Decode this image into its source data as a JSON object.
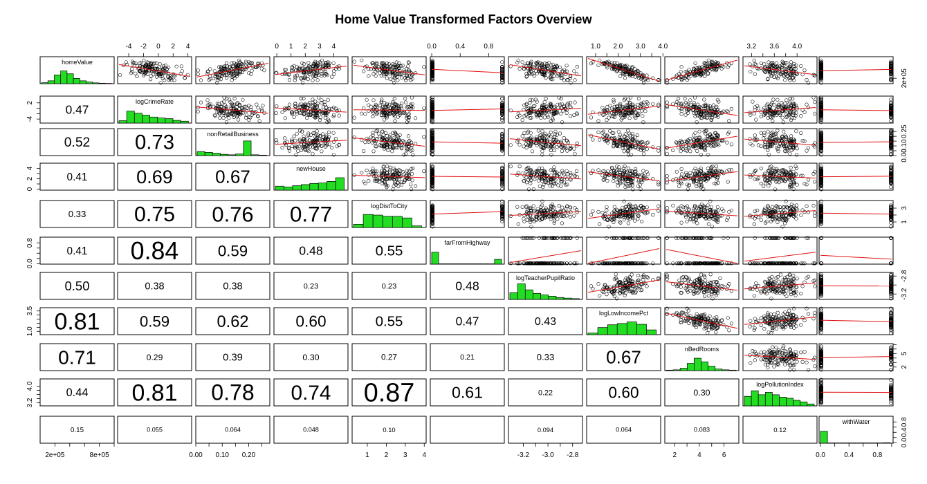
{
  "chart_data": {
    "type": "pairs",
    "title": "Home Value Transformed Factors Overview",
    "variables": [
      "homeValue",
      "logCrimeRate",
      "nonRetailBusiness",
      "newHouse",
      "logDistToCity",
      "farFromHighway",
      "logTeacherPupilRatio",
      "logLowIncomePct",
      "nBedRooms",
      "logPollutionIndex",
      "withWater"
    ],
    "ranges": [
      [
        0,
        1000000
      ],
      [
        -5.5,
        4.5
      ],
      [
        0,
        0.28
      ],
      [
        -0.2,
        5
      ],
      [
        0.2,
        4.1
      ],
      [
        -0.02,
        1.02
      ],
      [
        -3.32,
        -2.72
      ],
      [
        0.6,
        3.9
      ],
      [
        1.2,
        7.2
      ],
      [
        3.05,
        4.35
      ],
      [
        -0.02,
        1.02
      ]
    ],
    "axis_ticks": {
      "top": {
        "1": [
          -4,
          -2,
          0,
          2,
          4
        ],
        "3": [
          0,
          1,
          2,
          3,
          4
        ],
        "5": [
          0.0,
          0.4,
          0.8
        ],
        "7": [
          1.0,
          1.5,
          2.0,
          2.5,
          3.0,
          3.5,
          4.0
        ],
        "9": [
          3.2,
          3.4,
          3.6,
          3.8,
          4.0
        ]
      },
      "bottom": {
        "0": [
          200000,
          400000,
          600000,
          800000,
          1000000
        ],
        "2": [
          0.0,
          0.05,
          0.1,
          0.15,
          0.2,
          0.25
        ],
        "4": [
          1,
          2,
          3,
          4
        ],
        "6": [
          -3.2,
          -3.1,
          -3.0,
          -2.9,
          -2.8
        ],
        "8": [
          2,
          3,
          4,
          5,
          6
        ],
        "10": [
          0.0,
          0.2,
          0.4,
          0.6,
          0.8,
          1.0
        ]
      },
      "right": {
        "0": [
          200000
        ],
        "2": [
          0.0,
          0.05,
          0.1,
          0.15,
          0.2,
          0.25
        ],
        "4": [
          1,
          2,
          3
        ],
        "6": [
          -3.2,
          -3.0,
          -2.8
        ],
        "8": [
          2,
          3,
          4,
          5,
          6,
          7
        ],
        "10": [
          0.0,
          0.2,
          0.4,
          0.6,
          0.8
        ]
      },
      "left": {
        "1": [
          -4,
          -2,
          0,
          2
        ],
        "3": [
          0,
          1,
          2,
          3,
          4
        ],
        "5": [
          0.0,
          0.2,
          0.4,
          0.6,
          0.8
        ],
        "7": [
          1.0,
          1.5,
          2.0,
          2.5,
          3.0,
          3.5
        ],
        "9": [
          3.2,
          3.4,
          3.6,
          3.8,
          4.0
        ]
      }
    },
    "tick_labels": {
      "top": {
        "1": [
          "-4",
          "-2",
          "0",
          "2",
          "4"
        ],
        "3": [
          "0",
          "1",
          "2",
          "3",
          "4"
        ],
        "5": [
          "0.0",
          "0.4",
          "0.8"
        ],
        "7": [
          "1.0",
          "2.0",
          "3.0",
          "4.0"
        ],
        "9": [
          "3.2",
          "3.6",
          "4.0"
        ]
      },
      "bottom": {
        "0": [
          "2e+05",
          "8e+05"
        ],
        "2": [
          "0.00",
          "0.10",
          "0.20"
        ],
        "4": [
          "1",
          "2",
          "3",
          "4"
        ],
        "6": [
          "-3.2",
          "-3.0",
          "-2.8"
        ],
        "8": [
          "2",
          "4",
          "6"
        ],
        "10": [
          "0.0",
          "0.4",
          "0.8"
        ]
      },
      "right": {
        "0": [
          "2e+05"
        ],
        "2": [
          "0.00",
          "0.10",
          "0.25"
        ],
        "4": [
          "1",
          "3"
        ],
        "6": [
          "-3.2",
          "-2.8"
        ],
        "8": [
          "2",
          "5"
        ],
        "10": [
          "0.0",
          "0.4",
          "0.8"
        ]
      },
      "left": {
        "1": [
          "-4",
          "2"
        ],
        "3": [
          "0",
          "2",
          "4"
        ],
        "5": [
          "0.0",
          "0.8"
        ],
        "7": [
          "1.0",
          "3.5"
        ],
        "9": [
          "3.2",
          "4.0"
        ]
      }
    },
    "histograms": [
      [
        0.06,
        0.18,
        0.55,
        0.8,
        0.62,
        0.33,
        0.18,
        0.1,
        0.05,
        0.03,
        0.02
      ],
      [
        0.15,
        0.75,
        0.62,
        0.5,
        0.38,
        0.32,
        0.28,
        0.17,
        0.12
      ],
      [
        0.25,
        0.2,
        0.15,
        0.08,
        0.05,
        0.1,
        0.92,
        0.05,
        0.03
      ],
      [
        0.25,
        0.2,
        0.28,
        0.35,
        0.42,
        0.45,
        0.55,
        0.78
      ],
      [
        0.2,
        0.82,
        0.78,
        0.7,
        0.7,
        0.6,
        0.1
      ],
      [
        0.75,
        0.02,
        0.02,
        0.02,
        0.02,
        0.02,
        0.02,
        0.02,
        0.02,
        0.3
      ],
      [
        0.42,
        0.98,
        0.6,
        0.38,
        0.28,
        0.2,
        0.12,
        0.08,
        0.05
      ],
      [
        0.1,
        0.45,
        0.62,
        0.7,
        0.8,
        0.65,
        0.3
      ],
      [
        0.03,
        0.05,
        0.15,
        0.45,
        0.78,
        0.55,
        0.28,
        0.1,
        0.05,
        0.03
      ],
      [
        0.6,
        0.95,
        0.7,
        0.85,
        0.7,
        0.55,
        0.48,
        0.35,
        0.25,
        0.12
      ],
      [
        0.75,
        0.02,
        0.02,
        0.02,
        0.02,
        0.02,
        0.02,
        0.02,
        0.02,
        0.03
      ]
    ],
    "correlations": [
      [
        "0.47",
        "0.52",
        "0.41",
        "0.33",
        "0.41",
        "0.50",
        "0.81",
        "0.71",
        "0.44",
        "0.15"
      ],
      [
        "0.73",
        "0.69",
        "0.75",
        "0.84",
        "0.38",
        "0.59",
        "0.29",
        "0.81",
        "0.055"
      ],
      [
        "0.67",
        "0.76",
        "0.59",
        "0.38",
        "0.62",
        "0.39",
        "0.78",
        "0.064"
      ],
      [
        "0.77",
        "0.48",
        "0.23",
        "0.60",
        "0.30",
        "0.74",
        "0.048"
      ],
      [
        "0.55",
        "0.23",
        "0.55",
        "0.27",
        "0.87",
        "0.10"
      ],
      [
        "0.48",
        "0.47",
        "0.21",
        "0.61",
        ""
      ],
      [
        "0.43",
        "0.33",
        "0.22",
        "0.094"
      ],
      [
        "0.67",
        "0.60",
        "0.064"
      ],
      [
        "0.30",
        "0.083"
      ],
      [
        "0.12"
      ]
    ],
    "correlation_signs": [
      [
        -1,
        1,
        1,
        -1,
        -1,
        -1,
        -1,
        1,
        -1,
        1
      ],
      [
        1,
        -1,
        -1,
        1,
        1,
        1,
        -1,
        1,
        1
      ],
      [
        -1,
        -1,
        1,
        1,
        1,
        -1,
        1,
        1
      ],
      [
        1,
        -1,
        1,
        1,
        -1,
        1,
        -1
      ],
      [
        -1,
        -1,
        -1,
        1,
        -1,
        -1
      ],
      [
        1,
        -1,
        -1,
        1,
        1
      ],
      [
        1,
        -1,
        1,
        -1
      ],
      [
        -1,
        1,
        -1
      ],
      [
        -1,
        1
      ],
      [
        1
      ]
    ],
    "colors": {
      "hist_fill": "#22dd22",
      "smoother": "#e01010",
      "points": "#000000",
      "frame": "#000000"
    }
  }
}
